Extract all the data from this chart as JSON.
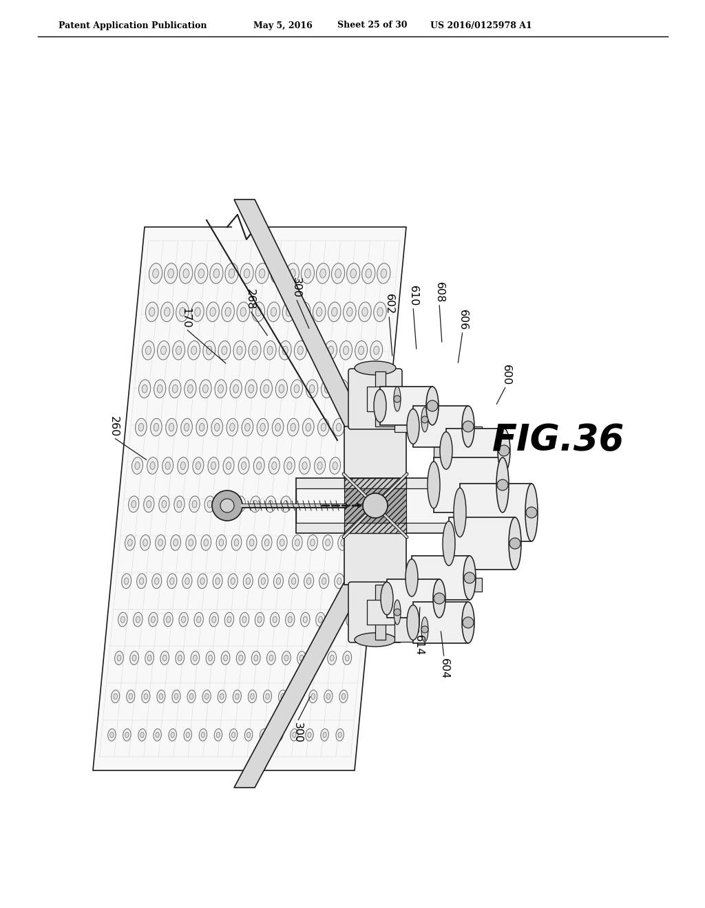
{
  "bg_color": "#ffffff",
  "header_text": "Patent Application Publication",
  "header_date": "May 5, 2016",
  "header_sheet": "Sheet 25 of 30",
  "header_patent": "US 2016/0125978 A1",
  "fig_label": "FIG.36",
  "line_color": "#1a1a1a",
  "light_gray": "#e8e8e8",
  "mid_gray": "#cccccc",
  "dark_gray": "#999999"
}
